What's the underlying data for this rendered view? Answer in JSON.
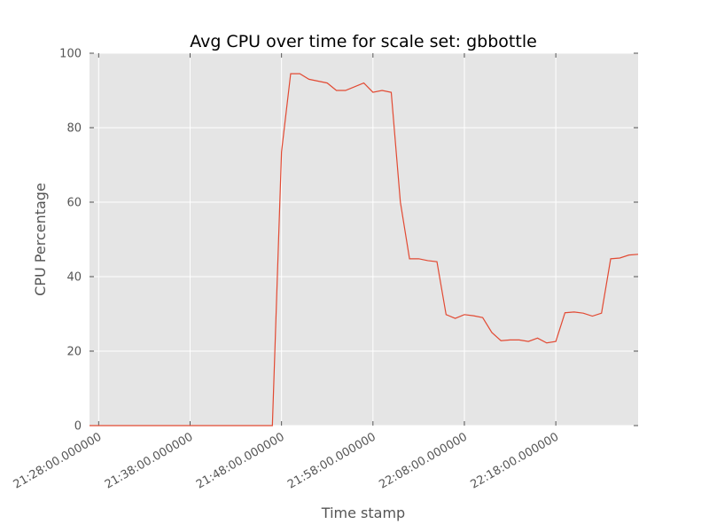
{
  "chart_data": {
    "type": "line",
    "title": "Avg CPU over time for scale set: gbbottle",
    "xlabel": "Time stamp",
    "ylabel": "CPU Percentage",
    "ylim": [
      0,
      100
    ],
    "xlim": [
      "21:27:00",
      "22:27:00"
    ],
    "grid": true,
    "y_ticks": [
      0,
      20,
      40,
      60,
      80,
      100
    ],
    "x_ticks": [
      {
        "t": "21:28:00",
        "label": "21:28:00.000000"
      },
      {
        "t": "21:38:00",
        "label": "21:38:00.000000"
      },
      {
        "t": "21:48:00",
        "label": "21:48:00.000000"
      },
      {
        "t": "21:58:00",
        "label": "21:58:00.000000"
      },
      {
        "t": "22:08:00",
        "label": "22:08:00.000000"
      },
      {
        "t": "22:18:00",
        "label": "22:18:00.000000"
      }
    ],
    "series": [
      {
        "color": "#e24a33",
        "x": [
          "21:27:00",
          "21:28:00",
          "21:29:00",
          "21:30:00",
          "21:31:00",
          "21:32:00",
          "21:33:00",
          "21:34:00",
          "21:35:00",
          "21:36:00",
          "21:37:00",
          "21:38:00",
          "21:39:00",
          "21:40:00",
          "21:41:00",
          "21:42:00",
          "21:43:00",
          "21:44:00",
          "21:45:00",
          "21:46:00",
          "21:47:00",
          "21:48:00",
          "21:49:00",
          "21:50:00",
          "21:51:00",
          "21:52:00",
          "21:53:00",
          "21:54:00",
          "21:55:00",
          "21:56:00",
          "21:57:00",
          "21:58:00",
          "21:59:00",
          "22:00:00",
          "22:01:00",
          "22:02:00",
          "22:03:00",
          "22:04:00",
          "22:05:00",
          "22:06:00",
          "22:07:00",
          "22:08:00",
          "22:09:00",
          "22:10:00",
          "22:11:00",
          "22:12:00",
          "22:13:00",
          "22:14:00",
          "22:15:00",
          "22:16:00",
          "22:17:00",
          "22:18:00",
          "22:19:00",
          "22:20:00",
          "22:21:00",
          "22:22:00",
          "22:23:00",
          "22:24:00",
          "22:25:00",
          "22:26:00",
          "22:27:00"
        ],
        "values": [
          0,
          0,
          0,
          0,
          0,
          0,
          0,
          0,
          0,
          0,
          0,
          0,
          0,
          0,
          0,
          0,
          0,
          0,
          0,
          0,
          0,
          73.5,
          94.5,
          94.5,
          93,
          92.5,
          92,
          90,
          90,
          91,
          92,
          89.5,
          90,
          89.5,
          60,
          44.8,
          44.8,
          44.3,
          44,
          29.8,
          28.8,
          29.8,
          29.5,
          29,
          25,
          22.8,
          23,
          23,
          22.6,
          23.5,
          22.2,
          22.6,
          30.3,
          30.5,
          30.2,
          29.4,
          30.2,
          44.8,
          45,
          45.8,
          46
        ]
      }
    ]
  }
}
